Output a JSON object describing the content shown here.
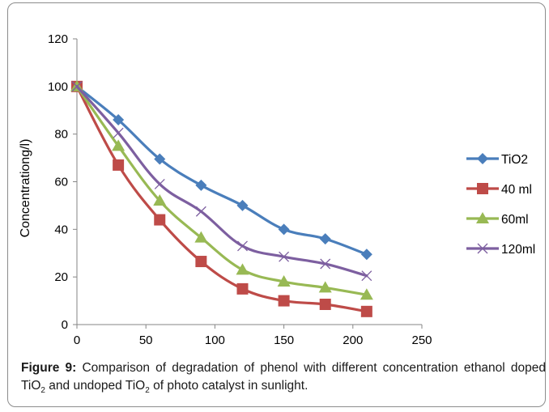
{
  "chart_data": {
    "type": "line",
    "title": "",
    "xlabel": "",
    "ylabel": "Concentrationg/l)",
    "xlim": [
      0,
      250
    ],
    "ylim": [
      0,
      120
    ],
    "xticks": [
      0,
      50,
      100,
      150,
      200,
      250
    ],
    "yticks": [
      0,
      20,
      40,
      60,
      80,
      100,
      120
    ],
    "grid": false,
    "legend_position": "right",
    "x": [
      0,
      30,
      60,
      90,
      120,
      150,
      180,
      210
    ],
    "series": [
      {
        "name": "TiO2",
        "color": "#4a7ebb",
        "marker": "diamond",
        "values": [
          100,
          86,
          69.5,
          58.5,
          50,
          40,
          36,
          29.5
        ]
      },
      {
        "name": "40 ml",
        "color": "#be4b48",
        "marker": "square",
        "values": [
          100,
          67,
          44,
          26.5,
          15,
          10,
          8.5,
          5.5
        ]
      },
      {
        "name": "60ml",
        "color": "#98b954",
        "marker": "triangle",
        "values": [
          100,
          75,
          52,
          36.5,
          23,
          18,
          15.5,
          12.5
        ]
      },
      {
        "name": "120ml",
        "color": "#7d5fa0",
        "marker": "x",
        "values": [
          100,
          80.5,
          59,
          47.5,
          33,
          28.5,
          25.5,
          20.5
        ]
      }
    ]
  },
  "caption": {
    "label": "Figure 9:",
    "text1": " Comparison of degradation of phenol with different concentration ethanol doped TiO",
    "sub1": "2",
    "text2": " and undoped TiO",
    "sub2": "2",
    "text3": " of photo catalyst in sunlight."
  }
}
